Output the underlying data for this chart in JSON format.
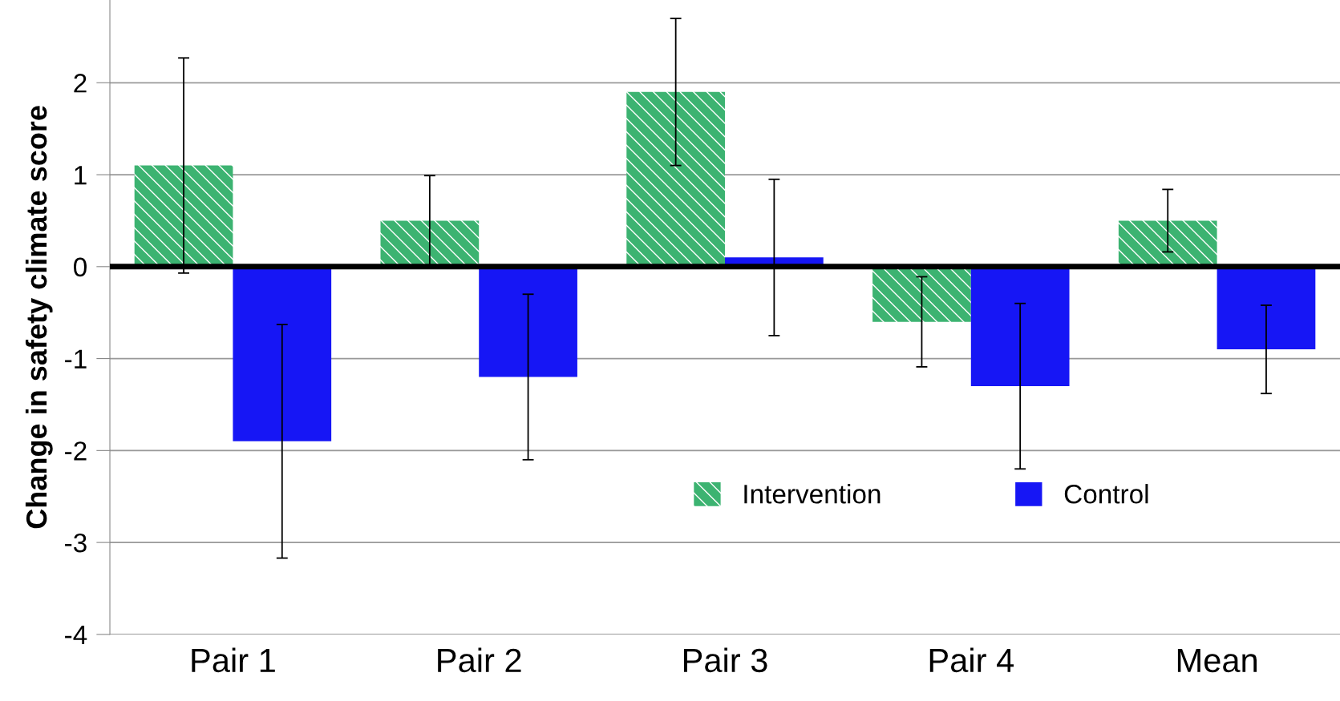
{
  "chart_data": {
    "type": "bar",
    "ylabel": "Change in safety climate score",
    "categories": [
      "Pair 1",
      "Pair 2",
      "Pair 3",
      "Pair 4",
      "Mean"
    ],
    "series": [
      {
        "name": "Intervention",
        "color": "#3cb371",
        "values": [
          1.1,
          0.5,
          1.9,
          -0.6,
          0.5
        ],
        "errors": [
          1.17,
          0.49,
          0.8,
          0.49,
          0.34
        ]
      },
      {
        "name": "Control",
        "color": "#1616f5",
        "values": [
          -1.9,
          -1.2,
          0.1,
          -1.3,
          -0.9
        ],
        "errors": [
          1.27,
          0.9,
          0.85,
          0.9,
          0.48
        ]
      }
    ],
    "ylim": [
      -4,
      2.9
    ],
    "yticks": [
      -4,
      -3,
      -2,
      -1,
      0,
      1,
      2
    ],
    "ref_lines": [
      {
        "axis": "y",
        "value": 0,
        "color": "#000000"
      }
    ],
    "grid": "y",
    "legend": "bottom"
  }
}
